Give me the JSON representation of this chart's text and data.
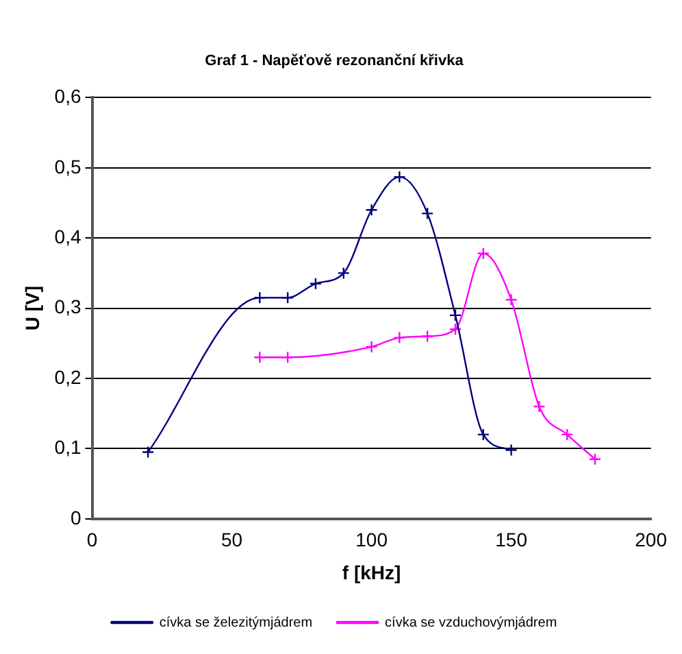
{
  "chart_data": {
    "type": "line",
    "title": "Graf 1 - Napěťově rezonanční křivka",
    "xlabel": "f [kHz]",
    "ylabel": "U [V]",
    "series": [
      {
        "name": "cívka se železitýmjádrem",
        "color": "#000080",
        "x": [
          20,
          60,
          70,
          80,
          90,
          100,
          110,
          120,
          130,
          140,
          150
        ],
        "values": [
          0.095,
          0.315,
          0.315,
          0.335,
          0.35,
          0.44,
          0.487,
          0.435,
          0.29,
          0.12,
          0.098
        ]
      },
      {
        "name": "cívka se vzduchovýmjádrem",
        "color": "#ff00ff",
        "x": [
          60,
          70,
          100,
          110,
          120,
          130,
          140,
          150,
          160,
          170,
          180
        ],
        "values": [
          0.23,
          0.23,
          0.245,
          0.258,
          0.26,
          0.27,
          0.378,
          0.312,
          0.16,
          0.12,
          0.085
        ]
      }
    ],
    "xlim": [
      0,
      200
    ],
    "xticks": [
      0,
      50,
      100,
      150,
      200
    ],
    "ylim": [
      0,
      0.6
    ],
    "yticks": [
      0,
      {
        "value": 0.1,
        "label": "0,1"
      },
      {
        "value": 0.2,
        "label": "0,2"
      },
      {
        "value": 0.3,
        "label": "0,3"
      },
      {
        "value": 0.4,
        "label": "0,4"
      },
      {
        "value": 0.5,
        "label": "0,5"
      },
      {
        "value": 0.6,
        "label": "0,6"
      }
    ],
    "grid": "y",
    "legend": "bottom",
    "marker": "cross",
    "line_style": "solid"
  }
}
